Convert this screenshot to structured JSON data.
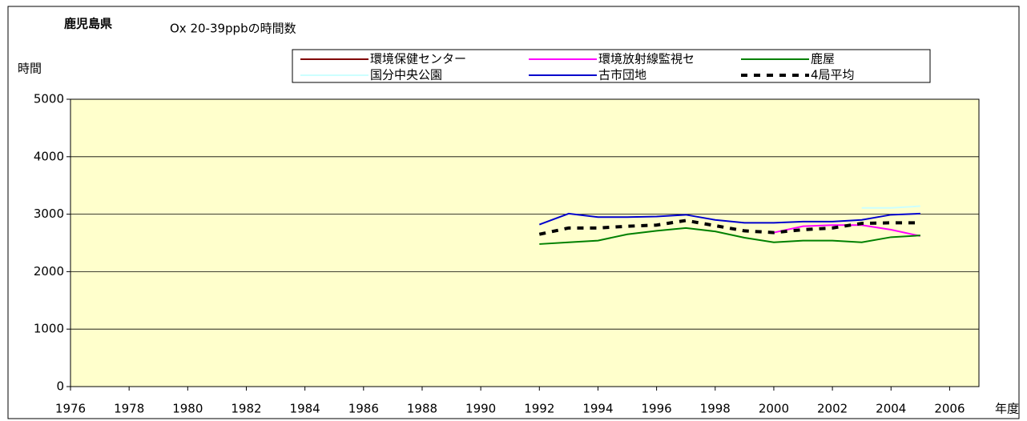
{
  "chart_data": {
    "type": "line",
    "title": "鹿児島県",
    "subtitle": "Ox 20-39ppbの時間数",
    "y_label": "時間",
    "x_label": "年度",
    "x": [
      1992,
      1993,
      1994,
      1995,
      1996,
      1997,
      1998,
      1999,
      2000,
      2001,
      2002,
      2003,
      2004,
      2005
    ],
    "series": [
      {
        "name": "環境保健センター",
        "color": "#800000",
        "dash": false,
        "values": [
          null,
          null,
          null,
          null,
          null,
          null,
          null,
          null,
          null,
          null,
          null,
          null,
          null,
          null
        ]
      },
      {
        "name": "環境放射線監視セ",
        "color": "#ff00ff",
        "dash": false,
        "values": [
          null,
          null,
          null,
          null,
          null,
          null,
          null,
          null,
          2680,
          2790,
          2810,
          2810,
          2730,
          2620
        ]
      },
      {
        "name": "鹿屋",
        "color": "#008000",
        "dash": false,
        "values": [
          2480,
          2510,
          2540,
          2650,
          2710,
          2760,
          2700,
          2590,
          2510,
          2540,
          2540,
          2510,
          2600,
          2630
        ]
      },
      {
        "name": "国分中央公園",
        "color": "#ccffff",
        "dash": false,
        "values": [
          null,
          null,
          null,
          null,
          null,
          null,
          null,
          null,
          null,
          null,
          null,
          3110,
          3110,
          3140
        ]
      },
      {
        "name": "古市団地",
        "color": "#0000cc",
        "dash": false,
        "values": [
          2820,
          3010,
          2950,
          2950,
          2960,
          2990,
          2900,
          2850,
          2850,
          2870,
          2870,
          2900,
          2990,
          3010
        ]
      },
      {
        "name": "4局平均",
        "color": "#000000",
        "dash": true,
        "values": [
          2650,
          2760,
          2760,
          2790,
          2810,
          2890,
          2800,
          2710,
          2680,
          2730,
          2760,
          2840,
          2850,
          2850
        ]
      }
    ],
    "xlim": [
      1976,
      2007
    ],
    "xticks": [
      1976,
      1978,
      1980,
      1982,
      1984,
      1986,
      1988,
      1990,
      1992,
      1994,
      1996,
      1998,
      2000,
      2002,
      2004,
      2006
    ],
    "ylim": [
      0,
      5000
    ],
    "yticks": [
      0,
      1000,
      2000,
      3000,
      4000,
      5000
    ],
    "grid": true,
    "background": "#ffffcc"
  }
}
